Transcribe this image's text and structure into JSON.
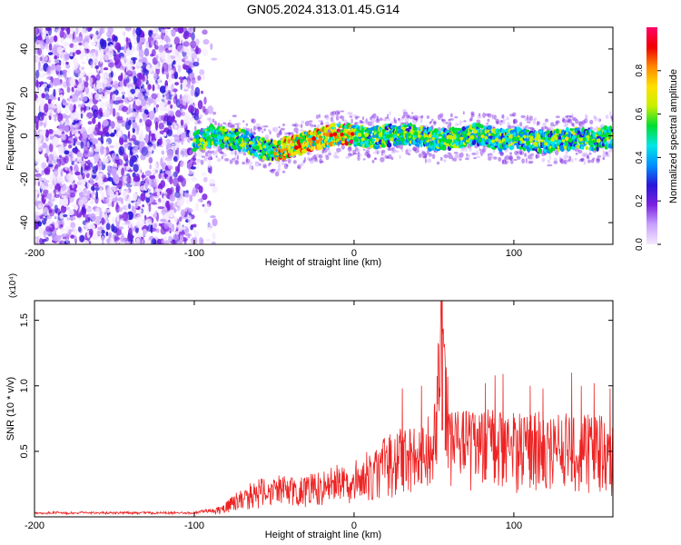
{
  "figure": {
    "title": "GN05.2024.313.01.45.G14"
  },
  "chart_data": [
    {
      "type": "heatmap",
      "xlabel": "Height of straight line (km)",
      "ylabel": "Frequency (Hz)",
      "xlim": [
        -200,
        162
      ],
      "ylim": [
        -50,
        50
      ],
      "xticks": [
        -200,
        -100,
        0,
        100
      ],
      "xtick_labels": [
        "-200",
        "-100",
        "0",
        "100"
      ],
      "yticks": [
        40,
        20,
        0,
        -20,
        -40
      ],
      "ytick_labels": [
        "40",
        "20",
        "0",
        "-20",
        "-40"
      ],
      "grid": false,
      "colorbar": {
        "label": "Normalized spectral amplitude",
        "range": [
          0,
          1
        ],
        "ticks": [
          0.0,
          0.2,
          0.4,
          0.6,
          0.8
        ],
        "tick_labels": [
          "0.0",
          "0.2",
          "0.4",
          "0.6",
          "0.8"
        ],
        "colormap": "rainbow (violet → blue → cyan → green → yellow → red → magenta)",
        "colors": [
          "#f4e9ff",
          "#c9a2ff",
          "#7b22e0",
          "#2a16d8",
          "#0090ff",
          "#00e6e6",
          "#00dd33",
          "#c8ef00",
          "#ffe000",
          "#ff8800",
          "#f00000",
          "#ff0066"
        ]
      },
      "features": {
        "noise_region_x": [
          -200,
          -87
        ],
        "signal_band_start_x": -100,
        "signal_center_hz": [
          [
            -100,
            -3
          ],
          [
            -90,
            0
          ],
          [
            -80,
            -1
          ],
          [
            -70,
            -2
          ],
          [
            -60,
            -5
          ],
          [
            -50,
            -7
          ],
          [
            -40,
            -5
          ],
          [
            -30,
            -3
          ],
          [
            -20,
            -1
          ],
          [
            -10,
            1
          ],
          [
            0,
            0
          ],
          [
            10,
            -1
          ],
          [
            20,
            0
          ],
          [
            30,
            1
          ],
          [
            40,
            0
          ],
          [
            50,
            -2
          ],
          [
            60,
            -1
          ],
          [
            70,
            0
          ],
          [
            80,
            1
          ],
          [
            90,
            -2
          ],
          [
            100,
            -1
          ],
          [
            110,
            -2
          ],
          [
            120,
            -3
          ],
          [
            130,
            -2
          ],
          [
            140,
            -1
          ],
          [
            150,
            -2
          ],
          [
            162,
            0
          ]
        ],
        "peak_amplitude_x": [
          -50,
          0
        ]
      }
    },
    {
      "type": "line",
      "xlabel": "Height of straight line (km)",
      "ylabel": "SNR (10 * v/v)",
      "y_multiplier_label": "(x10⁴)",
      "xlim": [
        -200,
        162
      ],
      "ylim": [
        0,
        1.65
      ],
      "xticks": [
        -200,
        -100,
        0,
        100
      ],
      "xtick_labels": [
        "-200",
        "-100",
        "0",
        "100"
      ],
      "yticks": [
        0.5,
        1.0,
        1.5
      ],
      "ytick_labels": [
        "0.5",
        "1.0",
        "1.5"
      ],
      "grid": false,
      "series": [
        {
          "color": "#ee2222",
          "envelope": [
            [
              -200,
              0.03
            ],
            [
              -100,
              0.03
            ],
            [
              -90,
              0.05
            ],
            [
              -80,
              0.1
            ],
            [
              -70,
              0.2
            ],
            [
              -60,
              0.25
            ],
            [
              -50,
              0.28
            ],
            [
              -40,
              0.27
            ],
            [
              -30,
              0.28
            ],
            [
              -20,
              0.3
            ],
            [
              -10,
              0.35
            ],
            [
              0,
              0.38
            ],
            [
              10,
              0.45
            ],
            [
              20,
              0.55
            ],
            [
              30,
              0.6
            ],
            [
              40,
              0.62
            ],
            [
              50,
              0.7
            ],
            [
              55,
              1.65
            ],
            [
              60,
              0.7
            ],
            [
              70,
              0.72
            ],
            [
              80,
              0.7
            ],
            [
              90,
              0.75
            ],
            [
              100,
              0.7
            ],
            [
              110,
              0.72
            ],
            [
              120,
              0.68
            ],
            [
              130,
              0.7
            ],
            [
              140,
              0.65
            ],
            [
              150,
              0.72
            ],
            [
              162,
              0.6
            ]
          ],
          "spikes": [
            [
              30,
              0.98
            ],
            [
              42,
              1.0
            ],
            [
              55,
              1.65
            ],
            [
              57,
              1.12
            ],
            [
              82,
              1.02
            ],
            [
              88,
              1.08
            ],
            [
              93,
              1.09
            ],
            [
              110,
              1.0
            ],
            [
              118,
              0.98
            ],
            [
              136,
              1.1
            ],
            [
              142,
              1.0
            ],
            [
              150,
              1.02
            ],
            [
              160,
              0.98
            ]
          ]
        }
      ]
    }
  ]
}
